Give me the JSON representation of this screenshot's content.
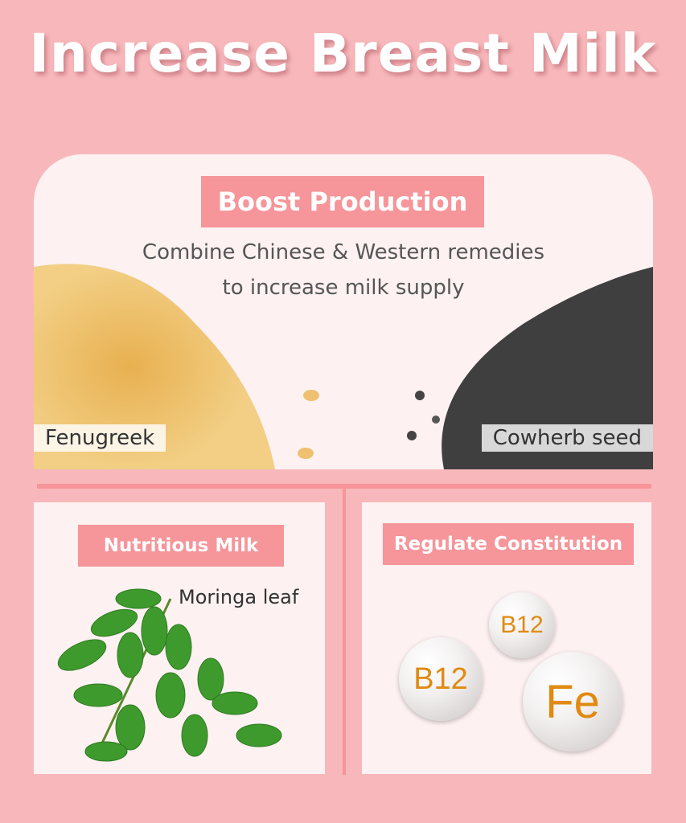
{
  "title": "Increase Breast Milk",
  "boost": {
    "tag": "Boost Production",
    "line1": "Combine Chinese & Western remedies",
    "line2": "to increase milk supply",
    "left_label": "Fenugreek",
    "right_label": "Cowherb seed"
  },
  "nutritious": {
    "tag": "Nutritious Milk",
    "label": "Moringa leaf"
  },
  "regulate": {
    "tag": "Regulate Constitution",
    "bubbles": [
      "B12",
      "B12",
      "Fe"
    ]
  },
  "colors": {
    "background": "#f8b8bb",
    "tag": "#f6959a",
    "panel": "#fdf1f1",
    "vitamin_text": "#e08a10"
  }
}
